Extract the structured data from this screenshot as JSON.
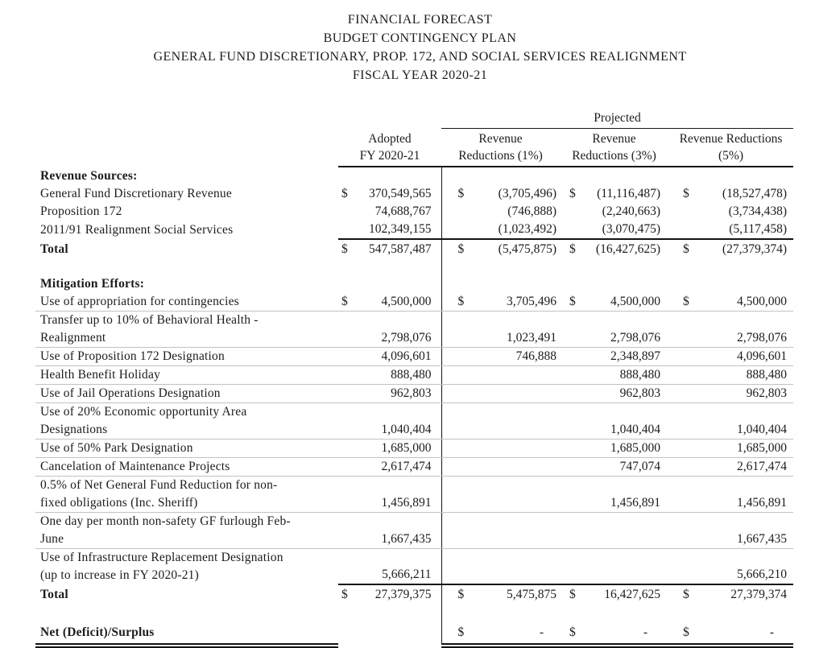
{
  "page": {
    "title_lines": [
      "FINANCIAL FORECAST",
      "BUDGET CONTINGENCY PLAN",
      "GENERAL FUND DISCRETIONARY, PROP. 172, AND SOCIAL SERVICES REALIGNMENT",
      "FISCAL YEAR 2020-21"
    ]
  },
  "table": {
    "header": {
      "projected_label": "Projected",
      "columns": {
        "adopted": {
          "line1": "Adopted",
          "line2": "FY 2020-21"
        },
        "r1": {
          "line1": "Revenue",
          "line2": "Reductions (1%)"
        },
        "r3": {
          "line1": "Revenue",
          "line2": "Reductions (3%)"
        },
        "r5": {
          "line1": "Revenue Reductions",
          "line2": "(5%)"
        }
      }
    },
    "rows": [
      {
        "type": "section",
        "label": [
          "Revenue Sources:"
        ]
      },
      {
        "type": "data",
        "label": [
          "General Fund Discretionary Revenue"
        ],
        "adopted": {
          "sym": "$",
          "val": "370,549,565"
        },
        "r1": {
          "sym": "$",
          "val": "(3,705,496)"
        },
        "r3": {
          "sym": "$",
          "val": "(11,116,487)"
        },
        "r5": {
          "sym": "$",
          "val": "(18,527,478)"
        }
      },
      {
        "type": "data",
        "label": [
          "Proposition 172"
        ],
        "adopted": {
          "val": "74,688,767"
        },
        "r1": {
          "val": "(746,888)"
        },
        "r3": {
          "val": "(2,240,663)"
        },
        "r5": {
          "val": "(3,734,438)"
        }
      },
      {
        "type": "data",
        "label": [
          "2011/91 Realignment Social Services"
        ],
        "rule_below": true,
        "adopted": {
          "val": "102,349,155"
        },
        "r1": {
          "val": "(1,023,492)"
        },
        "r3": {
          "val": "(3,070,475)"
        },
        "r5": {
          "val": "(5,117,458)"
        }
      },
      {
        "type": "total",
        "label": [
          "Total"
        ],
        "adopted": {
          "sym": "$",
          "val": "547,587,487"
        },
        "r1": {
          "sym": "$",
          "val": "(5,475,875)"
        },
        "r3": {
          "sym": "$",
          "val": "(16,427,625)"
        },
        "r5": {
          "sym": "$",
          "val": "(27,379,374)"
        }
      },
      {
        "type": "spacer"
      },
      {
        "type": "section",
        "label": [
          "Mitigation Efforts:"
        ]
      },
      {
        "type": "data",
        "label": [
          "Use of appropriation for contingencies"
        ],
        "sep_below": true,
        "adopted": {
          "sym": "$",
          "val": "4,500,000"
        },
        "r1": {
          "sym": "$",
          "val": "3,705,496"
        },
        "r3": {
          "sym": "$",
          "val": "4,500,000"
        },
        "r5": {
          "sym": "$",
          "val": "4,500,000"
        }
      },
      {
        "type": "data",
        "label": [
          "Transfer up to 10% of Behavioral Health -",
          "Realignment"
        ],
        "sep_below": true,
        "adopted": {
          "val": "2,798,076"
        },
        "r1": {
          "val": "1,023,491"
        },
        "r3": {
          "val": "2,798,076"
        },
        "r5": {
          "val": "2,798,076"
        }
      },
      {
        "type": "data",
        "label": [
          "Use of Proposition 172 Designation"
        ],
        "sep_below": true,
        "adopted": {
          "val": "4,096,601"
        },
        "r1": {
          "val": "746,888"
        },
        "r3": {
          "val": "2,348,897"
        },
        "r5": {
          "val": "4,096,601"
        }
      },
      {
        "type": "data",
        "label": [
          "Health Benefit Holiday"
        ],
        "sep_below": true,
        "adopted": {
          "val": "888,480"
        },
        "r3": {
          "val": "888,480"
        },
        "r5": {
          "val": "888,480"
        }
      },
      {
        "type": "data",
        "label": [
          "Use of Jail Operations Designation"
        ],
        "sep_below": true,
        "adopted": {
          "val": "962,803"
        },
        "r3": {
          "val": "962,803"
        },
        "r5": {
          "val": "962,803"
        }
      },
      {
        "type": "data",
        "label": [
          "Use of 20% Economic opportunity Area",
          "Designations"
        ],
        "sep_below": true,
        "adopted": {
          "val": "1,040,404"
        },
        "r3": {
          "val": "1,040,404"
        },
        "r5": {
          "val": "1,040,404"
        }
      },
      {
        "type": "data",
        "label": [
          "Use of 50% Park Designation"
        ],
        "sep_below": true,
        "adopted": {
          "val": "1,685,000"
        },
        "r3": {
          "val": "1,685,000"
        },
        "r5": {
          "val": "1,685,000"
        }
      },
      {
        "type": "data",
        "label": [
          "Cancelation of Maintenance Projects"
        ],
        "sep_below": true,
        "adopted": {
          "val": "2,617,474"
        },
        "r3": {
          "val": "747,074"
        },
        "r5": {
          "val": "2,617,474"
        }
      },
      {
        "type": "data",
        "label": [
          "0.5% of Net General Fund Reduction for non-",
          "fixed obligations (Inc. Sheriff)"
        ],
        "sep_below": true,
        "adopted": {
          "val": "1,456,891"
        },
        "r3": {
          "val": "1,456,891"
        },
        "r5": {
          "val": "1,456,891"
        }
      },
      {
        "type": "data",
        "label": [
          "One day per month non-safety GF furlough Feb-",
          "June"
        ],
        "sep_below": true,
        "adopted": {
          "val": "1,667,435"
        },
        "r5": {
          "val": "1,667,435"
        }
      },
      {
        "type": "data",
        "label": [
          "Use of Infrastructure Replacement Designation",
          "(up to increase in FY 2020-21)"
        ],
        "rule_below": true,
        "adopted": {
          "val": "5,666,211"
        },
        "r5": {
          "val": "5,666,210"
        }
      },
      {
        "type": "total",
        "label": [
          "Total"
        ],
        "adopted": {
          "sym": "$",
          "val": "27,379,375"
        },
        "r1": {
          "sym": "$",
          "val": "5,475,875"
        },
        "r3": {
          "sym": "$",
          "val": "16,427,625"
        },
        "r5": {
          "sym": "$",
          "val": "27,379,374"
        }
      },
      {
        "type": "spacer"
      },
      {
        "type": "net",
        "label": [
          "Net (Deficit)/Surplus"
        ],
        "r1": {
          "sym": "$",
          "val": "-"
        },
        "r3": {
          "sym": "$",
          "val": "-"
        },
        "r5": {
          "sym": "$",
          "val": "-"
        }
      }
    ]
  }
}
